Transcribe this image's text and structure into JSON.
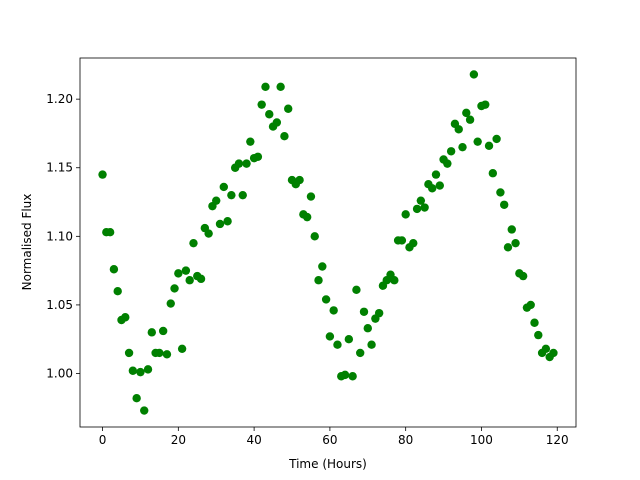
{
  "chart_data": {
    "type": "scatter",
    "x_label": "Time (Hours)",
    "y_label": "Normalised Flux",
    "color": "#008000",
    "x": [
      0,
      1,
      2,
      3,
      4,
      5,
      6,
      7,
      8,
      9,
      10,
      11,
      12,
      13,
      14,
      15,
      16,
      17,
      18,
      19,
      20,
      21,
      22,
      23,
      24,
      25,
      26,
      27,
      28,
      29,
      30,
      31,
      32,
      33,
      34,
      35,
      36,
      37,
      38,
      39,
      40,
      41,
      42,
      43,
      44,
      45,
      46,
      47,
      48,
      49,
      50,
      51,
      52,
      53,
      54,
      55,
      56,
      57,
      58,
      59,
      60,
      61,
      62,
      63,
      64,
      65,
      66,
      67,
      68,
      69,
      70,
      71,
      72,
      73,
      74,
      75,
      76,
      77,
      78,
      79,
      80,
      81,
      82,
      83,
      84,
      85,
      86,
      87,
      88,
      89,
      90,
      91,
      92,
      93,
      94,
      95,
      96,
      97,
      98,
      99,
      100,
      101,
      102,
      103,
      104,
      105,
      106,
      107,
      108,
      109,
      110,
      111,
      112,
      113,
      114,
      115,
      116,
      117,
      118,
      119
    ],
    "values": [
      1.145,
      1.103,
      1.103,
      1.076,
      1.06,
      1.039,
      1.041,
      1.015,
      1.002,
      0.982,
      1.001,
      0.973,
      1.003,
      1.03,
      1.015,
      1.015,
      1.031,
      1.014,
      1.051,
      1.062,
      1.073,
      1.018,
      1.075,
      1.068,
      1.095,
      1.071,
      1.069,
      1.106,
      1.102,
      1.122,
      1.126,
      1.109,
      1.136,
      1.111,
      1.13,
      1.15,
      1.153,
      1.13,
      1.153,
      1.169,
      1.157,
      1.158,
      1.196,
      1.209,
      1.189,
      1.18,
      1.183,
      1.209,
      1.173,
      1.193,
      1.141,
      1.138,
      1.141,
      1.116,
      1.114,
      1.129,
      1.1,
      1.068,
      1.078,
      1.054,
      1.027,
      1.046,
      1.021,
      0.998,
      0.999,
      1.025,
      0.998,
      1.061,
      1.015,
      1.045,
      1.033,
      1.021,
      1.04,
      1.044,
      1.064,
      1.068,
      1.072,
      1.068,
      1.097,
      1.097,
      1.116,
      1.092,
      1.095,
      1.12,
      1.126,
      1.121,
      1.138,
      1.135,
      1.145,
      1.137,
      1.156,
      1.153,
      1.162,
      1.182,
      1.178,
      1.165,
      1.19,
      1.185,
      1.218,
      1.169,
      1.195,
      1.196,
      1.166,
      1.146,
      1.171,
      1.132,
      1.123,
      1.092,
      1.105,
      1.095,
      1.073,
      1.071,
      1.048,
      1.05,
      1.037,
      1.028,
      1.015,
      1.018,
      1.012,
      1.015
    ],
    "xlim": [
      -5.95,
      124.95
    ],
    "xticks": [
      0,
      20,
      40,
      60,
      80,
      100,
      120
    ],
    "ylim": [
      0.961,
      1.23
    ],
    "yticks": [
      {
        "value": 1.0,
        "label": "1.00"
      },
      1.05,
      {
        "value": 1.1,
        "label": "1.10"
      },
      1.15,
      {
        "value": 1.2,
        "label": "1.20"
      }
    ]
  }
}
